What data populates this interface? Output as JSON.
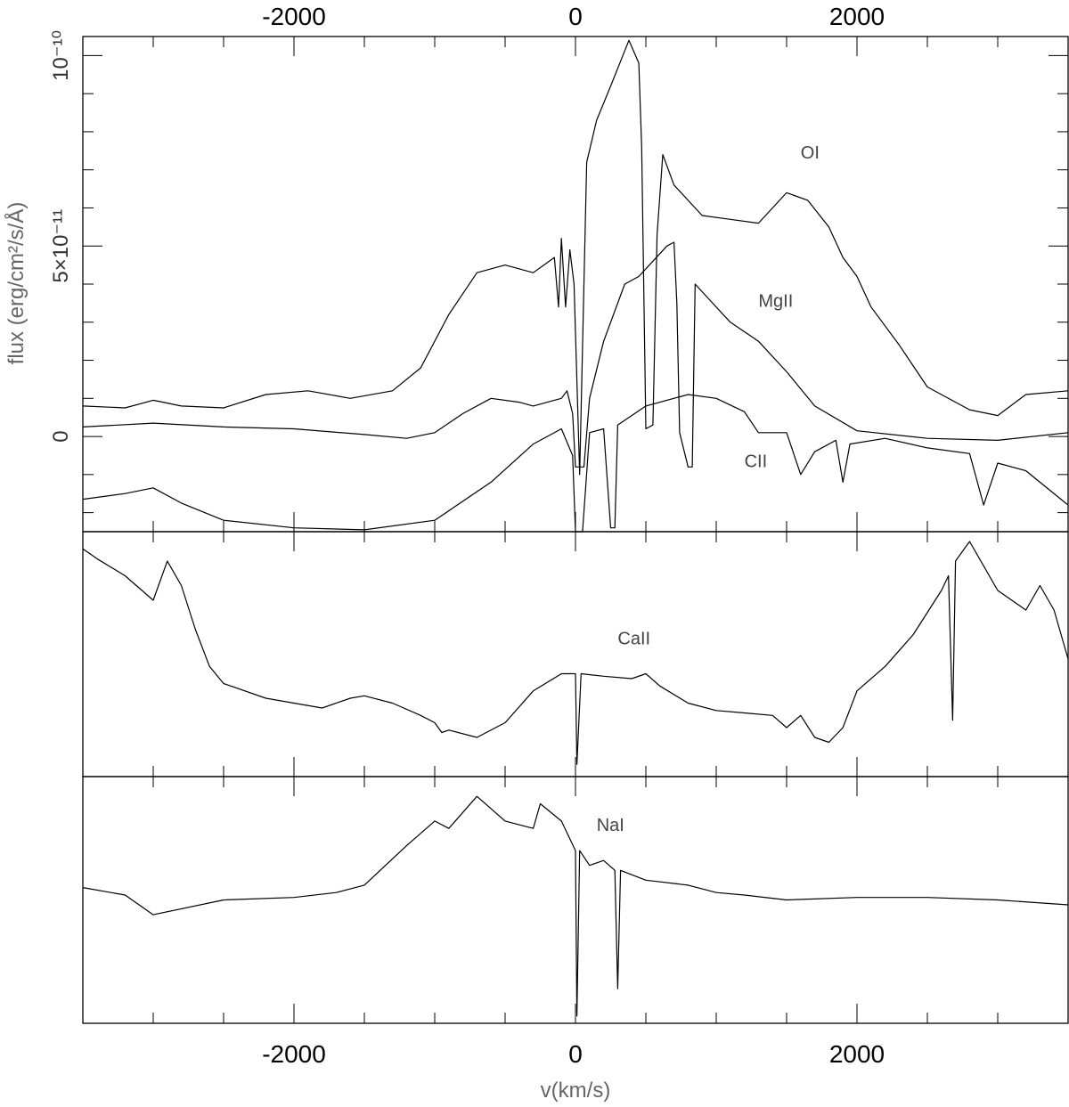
{
  "chart_data": {
    "type": "line",
    "title": "",
    "xlabel": "v(km/s)",
    "ylabel": "flux (erg/cm²/s/Å)",
    "xlim": [
      -3500,
      3500
    ],
    "x_ticks": [
      -2000,
      0,
      2000
    ],
    "grid": false,
    "panels": [
      {
        "id": "top",
        "ylim": [
          -2.5e-11,
          1.05e-10
        ],
        "y_ticks": [
          {
            "value": 0,
            "label": "0"
          },
          {
            "value": 5e-11,
            "label": "5×10⁻¹¹"
          },
          {
            "value": 1e-10,
            "label": "10⁻¹⁰"
          }
        ],
        "series": [
          {
            "name": "OI",
            "label_at": [
              1600,
              7.3e-11
            ],
            "points": [
              [
                -3500,
                8e-12
              ],
              [
                -3200,
                7.5e-12
              ],
              [
                -3000,
                9.5e-12
              ],
              [
                -2800,
                8e-12
              ],
              [
                -2500,
                7.5e-12
              ],
              [
                -2200,
                1.1e-11
              ],
              [
                -1900,
                1.2e-11
              ],
              [
                -1600,
                1e-11
              ],
              [
                -1300,
                1.2e-11
              ],
              [
                -1100,
                1.8e-11
              ],
              [
                -900,
                3.2e-11
              ],
              [
                -700,
                4.3e-11
              ],
              [
                -500,
                4.5e-11
              ],
              [
                -300,
                4.3e-11
              ],
              [
                -150,
                4.7e-11
              ],
              [
                -120,
                3.4e-11
              ],
              [
                -100,
                5.2e-11
              ],
              [
                -70,
                3.4e-11
              ],
              [
                -40,
                4.9e-11
              ],
              [
                -10,
                4e-11
              ],
              [
                30,
                -1e-11
              ],
              [
                60,
                4e-11
              ],
              [
                80,
                7.2e-11
              ],
              [
                150,
                8.3e-11
              ],
              [
                250,
                9.2e-11
              ],
              [
                380,
                1.04e-10
              ],
              [
                450,
                9.8e-11
              ],
              [
                470,
                7.6e-11
              ],
              [
                500,
                2e-12
              ],
              [
                550,
                3e-12
              ],
              [
                580,
                5.3e-11
              ],
              [
                620,
                7.4e-11
              ],
              [
                700,
                6.6e-11
              ],
              [
                900,
                5.8e-11
              ],
              [
                1100,
                5.7e-11
              ],
              [
                1300,
                5.6e-11
              ],
              [
                1500,
                6.4e-11
              ],
              [
                1650,
                6.2e-11
              ],
              [
                1800,
                5.5e-11
              ],
              [
                1900,
                4.7e-11
              ],
              [
                2000,
                4.2e-11
              ],
              [
                2100,
                3.4e-11
              ],
              [
                2300,
                2.4e-11
              ],
              [
                2500,
                1.3e-11
              ],
              [
                2800,
                7e-12
              ],
              [
                3000,
                5.5e-12
              ],
              [
                3200,
                1.1e-11
              ],
              [
                3500,
                1.2e-11
              ]
            ]
          },
          {
            "name": "MgII",
            "label_at": [
              1300,
              3.4e-11
            ],
            "points": [
              [
                -3500,
                2.5e-12
              ],
              [
                -3000,
                3.5e-12
              ],
              [
                -2500,
                2.5e-12
              ],
              [
                -2000,
                2e-12
              ],
              [
                -1500,
                5e-13
              ],
              [
                -1200,
                -5e-13
              ],
              [
                -1000,
                1e-12
              ],
              [
                -800,
                6e-12
              ],
              [
                -600,
                1e-11
              ],
              [
                -400,
                9e-12
              ],
              [
                -300,
                8e-12
              ],
              [
                -200,
                9e-12
              ],
              [
                -100,
                1e-11
              ],
              [
                -60,
                1.2e-11
              ],
              [
                -20,
                6e-12
              ],
              [
                0,
                -8e-12
              ],
              [
                60,
                -8e-12
              ],
              [
                100,
                1e-11
              ],
              [
                200,
                2.5e-11
              ],
              [
                350,
                4e-11
              ],
              [
                450,
                4.2e-11
              ],
              [
                550,
                4.6e-11
              ],
              [
                650,
                5e-11
              ],
              [
                700,
                5.1e-11
              ],
              [
                720,
                3.5e-11
              ],
              [
                740,
                1e-12
              ],
              [
                800,
                -8e-12
              ],
              [
                830,
                -8e-12
              ],
              [
                850,
                4e-11
              ],
              [
                900,
                3.8e-11
              ],
              [
                1100,
                3e-11
              ],
              [
                1300,
                2.5e-11
              ],
              [
                1500,
                1.7e-11
              ],
              [
                1700,
                8e-12
              ],
              [
                2000,
                1.5e-12
              ],
              [
                2500,
                -5e-13
              ],
              [
                3000,
                -1e-12
              ],
              [
                3500,
                1e-12
              ]
            ]
          },
          {
            "name": "CII",
            "label_at": [
              1200,
              -8e-12
            ],
            "points": [
              [
                -3500,
                -1.65e-11
              ],
              [
                -3200,
                -1.5e-11
              ],
              [
                -3000,
                -1.35e-11
              ],
              [
                -2800,
                -1.75e-11
              ],
              [
                -2500,
                -2.2e-11
              ],
              [
                -2000,
                -2.4e-11
              ],
              [
                -1500,
                -2.45e-11
              ],
              [
                -1000,
                -2.2e-11
              ],
              [
                -600,
                -1.2e-11
              ],
              [
                -300,
                -2e-12
              ],
              [
                -100,
                2e-12
              ],
              [
                -20,
                -5e-12
              ],
              [
                0,
                -2.5e-11
              ],
              [
                50,
                -2.5e-11
              ],
              [
                100,
                1e-12
              ],
              [
                200,
                2e-12
              ],
              [
                250,
                -2.4e-11
              ],
              [
                280,
                -2.4e-11
              ],
              [
                300,
                3e-12
              ],
              [
                500,
                8e-12
              ],
              [
                800,
                1.1e-11
              ],
              [
                1000,
                1e-11
              ],
              [
                1200,
                6.5e-12
              ],
              [
                1300,
                1e-12
              ],
              [
                1500,
                1e-12
              ],
              [
                1600,
                -1e-11
              ],
              [
                1700,
                -4e-12
              ],
              [
                1850,
                -1e-12
              ],
              [
                1900,
                -1.2e-11
              ],
              [
                1950,
                -2e-12
              ],
              [
                2200,
                -5e-13
              ],
              [
                2500,
                -3e-12
              ],
              [
                2800,
                -4.5e-12
              ],
              [
                2900,
                -1.8e-11
              ],
              [
                3000,
                -7e-12
              ],
              [
                3200,
                -9e-12
              ],
              [
                3500,
                -1.8e-11
              ]
            ]
          }
        ]
      },
      {
        "id": "middle",
        "ylim": [
          0,
          1
        ],
        "y_ticks": [],
        "series": [
          {
            "name": "CaII",
            "label_at": [
              300,
              0.54
            ],
            "points": [
              [
                -3500,
                0.93
              ],
              [
                -3400,
                0.89
              ],
              [
                -3200,
                0.82
              ],
              [
                -3000,
                0.72
              ],
              [
                -2900,
                0.88
              ],
              [
                -2800,
                0.78
              ],
              [
                -2700,
                0.6
              ],
              [
                -2600,
                0.45
              ],
              [
                -2500,
                0.38
              ],
              [
                -2200,
                0.32
              ],
              [
                -2000,
                0.3
              ],
              [
                -1800,
                0.28
              ],
              [
                -1600,
                0.32
              ],
              [
                -1500,
                0.33
              ],
              [
                -1300,
                0.3
              ],
              [
                -1100,
                0.25
              ],
              [
                -1000,
                0.22
              ],
              [
                -950,
                0.18
              ],
              [
                -900,
                0.19
              ],
              [
                -700,
                0.16
              ],
              [
                -500,
                0.22
              ],
              [
                -300,
                0.35
              ],
              [
                -100,
                0.42
              ],
              [
                0,
                0.42
              ],
              [
                10,
                0.05
              ],
              [
                40,
                0.42
              ],
              [
                200,
                0.41
              ],
              [
                400,
                0.4
              ],
              [
                500,
                0.42
              ],
              [
                600,
                0.37
              ],
              [
                800,
                0.3
              ],
              [
                1000,
                0.27
              ],
              [
                1200,
                0.26
              ],
              [
                1400,
                0.25
              ],
              [
                1500,
                0.2
              ],
              [
                1600,
                0.25
              ],
              [
                1700,
                0.16
              ],
              [
                1800,
                0.14
              ],
              [
                1900,
                0.2
              ],
              [
                2000,
                0.35
              ],
              [
                2200,
                0.45
              ],
              [
                2400,
                0.58
              ],
              [
                2600,
                0.76
              ],
              [
                2650,
                0.82
              ],
              [
                2680,
                0.23
              ],
              [
                2700,
                0.88
              ],
              [
                2800,
                0.96
              ],
              [
                3000,
                0.76
              ],
              [
                3100,
                0.72
              ],
              [
                3200,
                0.68
              ],
              [
                3300,
                0.78
              ],
              [
                3400,
                0.68
              ],
              [
                3500,
                0.48
              ]
            ]
          }
        ]
      },
      {
        "id": "bottom",
        "ylim": [
          0,
          1
        ],
        "y_ticks": [],
        "series": [
          {
            "name": "NaI",
            "label_at": [
              150,
              0.78
            ],
            "points": [
              [
                -3500,
                0.55
              ],
              [
                -3200,
                0.52
              ],
              [
                -3000,
                0.44
              ],
              [
                -2500,
                0.5
              ],
              [
                -2000,
                0.51
              ],
              [
                -1700,
                0.53
              ],
              [
                -1500,
                0.56
              ],
              [
                -1200,
                0.72
              ],
              [
                -1000,
                0.82
              ],
              [
                -900,
                0.79
              ],
              [
                -700,
                0.92
              ],
              [
                -500,
                0.82
              ],
              [
                -300,
                0.79
              ],
              [
                -250,
                0.89
              ],
              [
                -100,
                0.82
              ],
              [
                0,
                0.7
              ],
              [
                10,
                0.03
              ],
              [
                30,
                0.7
              ],
              [
                100,
                0.64
              ],
              [
                200,
                0.66
              ],
              [
                280,
                0.62
              ],
              [
                300,
                0.14
              ],
              [
                320,
                0.62
              ],
              [
                500,
                0.58
              ],
              [
                800,
                0.56
              ],
              [
                1000,
                0.53
              ],
              [
                1200,
                0.52
              ],
              [
                1500,
                0.5
              ],
              [
                2000,
                0.51
              ],
              [
                2500,
                0.51
              ],
              [
                3000,
                0.5
              ],
              [
                3500,
                0.48
              ]
            ]
          }
        ]
      }
    ]
  }
}
